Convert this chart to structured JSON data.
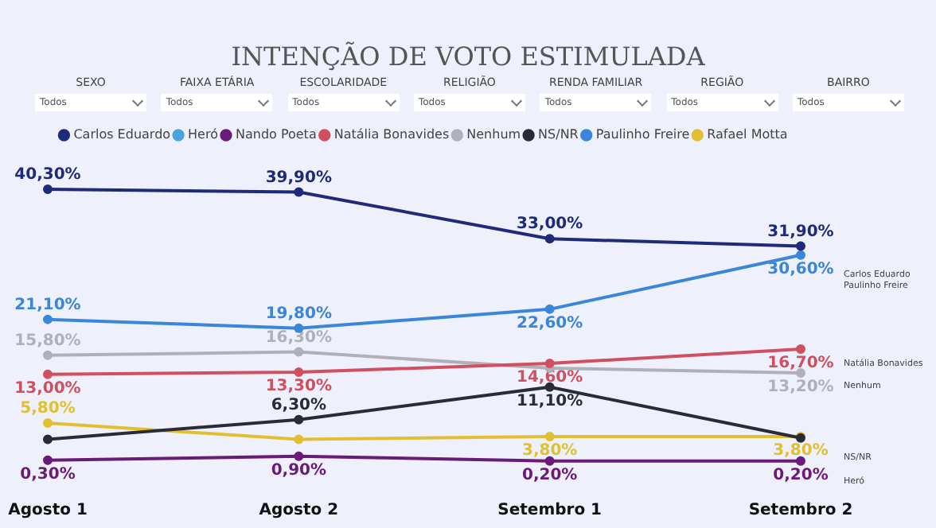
{
  "chart_data": {
    "type": "line",
    "title": "INTENÇÃO DE VOTO ESTIMULADA",
    "categories": [
      "Agosto 1",
      "Agosto 2",
      "Setembro 1",
      "Setembro 2"
    ],
    "legend": "top",
    "marker": "circle",
    "line_style": "solid",
    "series": [
      {
        "name": "Carlos Eduardo",
        "color": "#1f2a7a",
        "values": [
          40.3,
          39.9,
          33.0,
          31.9
        ],
        "value_labels": [
          "40,30%",
          "39,90%",
          "33,00%",
          "31,90%"
        ]
      },
      {
        "name": "Heró",
        "color": "#4aa3df",
        "values": [
          null,
          null,
          null,
          null
        ]
      },
      {
        "name": "Nando Poeta",
        "color": "#6a1b7a",
        "values": [
          0.3,
          0.9,
          0.2,
          0.2
        ],
        "value_labels": [
          "0,30%",
          "0,90%",
          "0,20%",
          "0,20%"
        ]
      },
      {
        "name": "Natália Bonavides",
        "color": "#d0505f",
        "values": [
          13.0,
          13.3,
          14.6,
          16.7
        ],
        "value_labels": [
          "13,00%",
          "13,30%",
          "14,60%",
          "16,70%"
        ]
      },
      {
        "name": "Nenhum",
        "color": "#b0b0b8",
        "values": [
          15.8,
          16.3,
          13.9,
          13.2
        ],
        "value_labels": [
          "15,80%",
          "16,30%",
          null,
          "13,20%"
        ]
      },
      {
        "name": "NS/NR",
        "color": "#2b2b38",
        "values": [
          3.4,
          6.3,
          11.1,
          3.6
        ],
        "value_labels": [
          null,
          "6,30%",
          "11,10%",
          null
        ]
      },
      {
        "name": "Paulinho Freire",
        "color": "#3a86d8",
        "values": [
          21.1,
          19.8,
          22.6,
          30.6
        ],
        "value_labels": [
          "21,10%",
          "19,80%",
          "22,60%",
          "30,60%"
        ]
      },
      {
        "name": "Rafael Motta",
        "color": "#e0c030",
        "values": [
          5.8,
          3.4,
          3.8,
          3.8
        ],
        "value_labels": [
          "5,80%",
          null,
          "3,80%",
          "3,80%"
        ]
      }
    ],
    "annotations": [
      "SEXO",
      "Todos",
      "FAIXA ETÁRIA",
      "Todos",
      "ESCOLARIDADE",
      "Todos",
      "RELIGIÃO",
      "Todos",
      "RENDA FAMILIAR",
      "Todos",
      "REGIÃO",
      "Todos",
      "BAIRRO",
      "Todos",
      "Carlos Eduardo",
      "Paulinho Freire",
      "Natália Bonavides",
      "Nenhum",
      "NS/NR",
      "Heró"
    ]
  }
}
